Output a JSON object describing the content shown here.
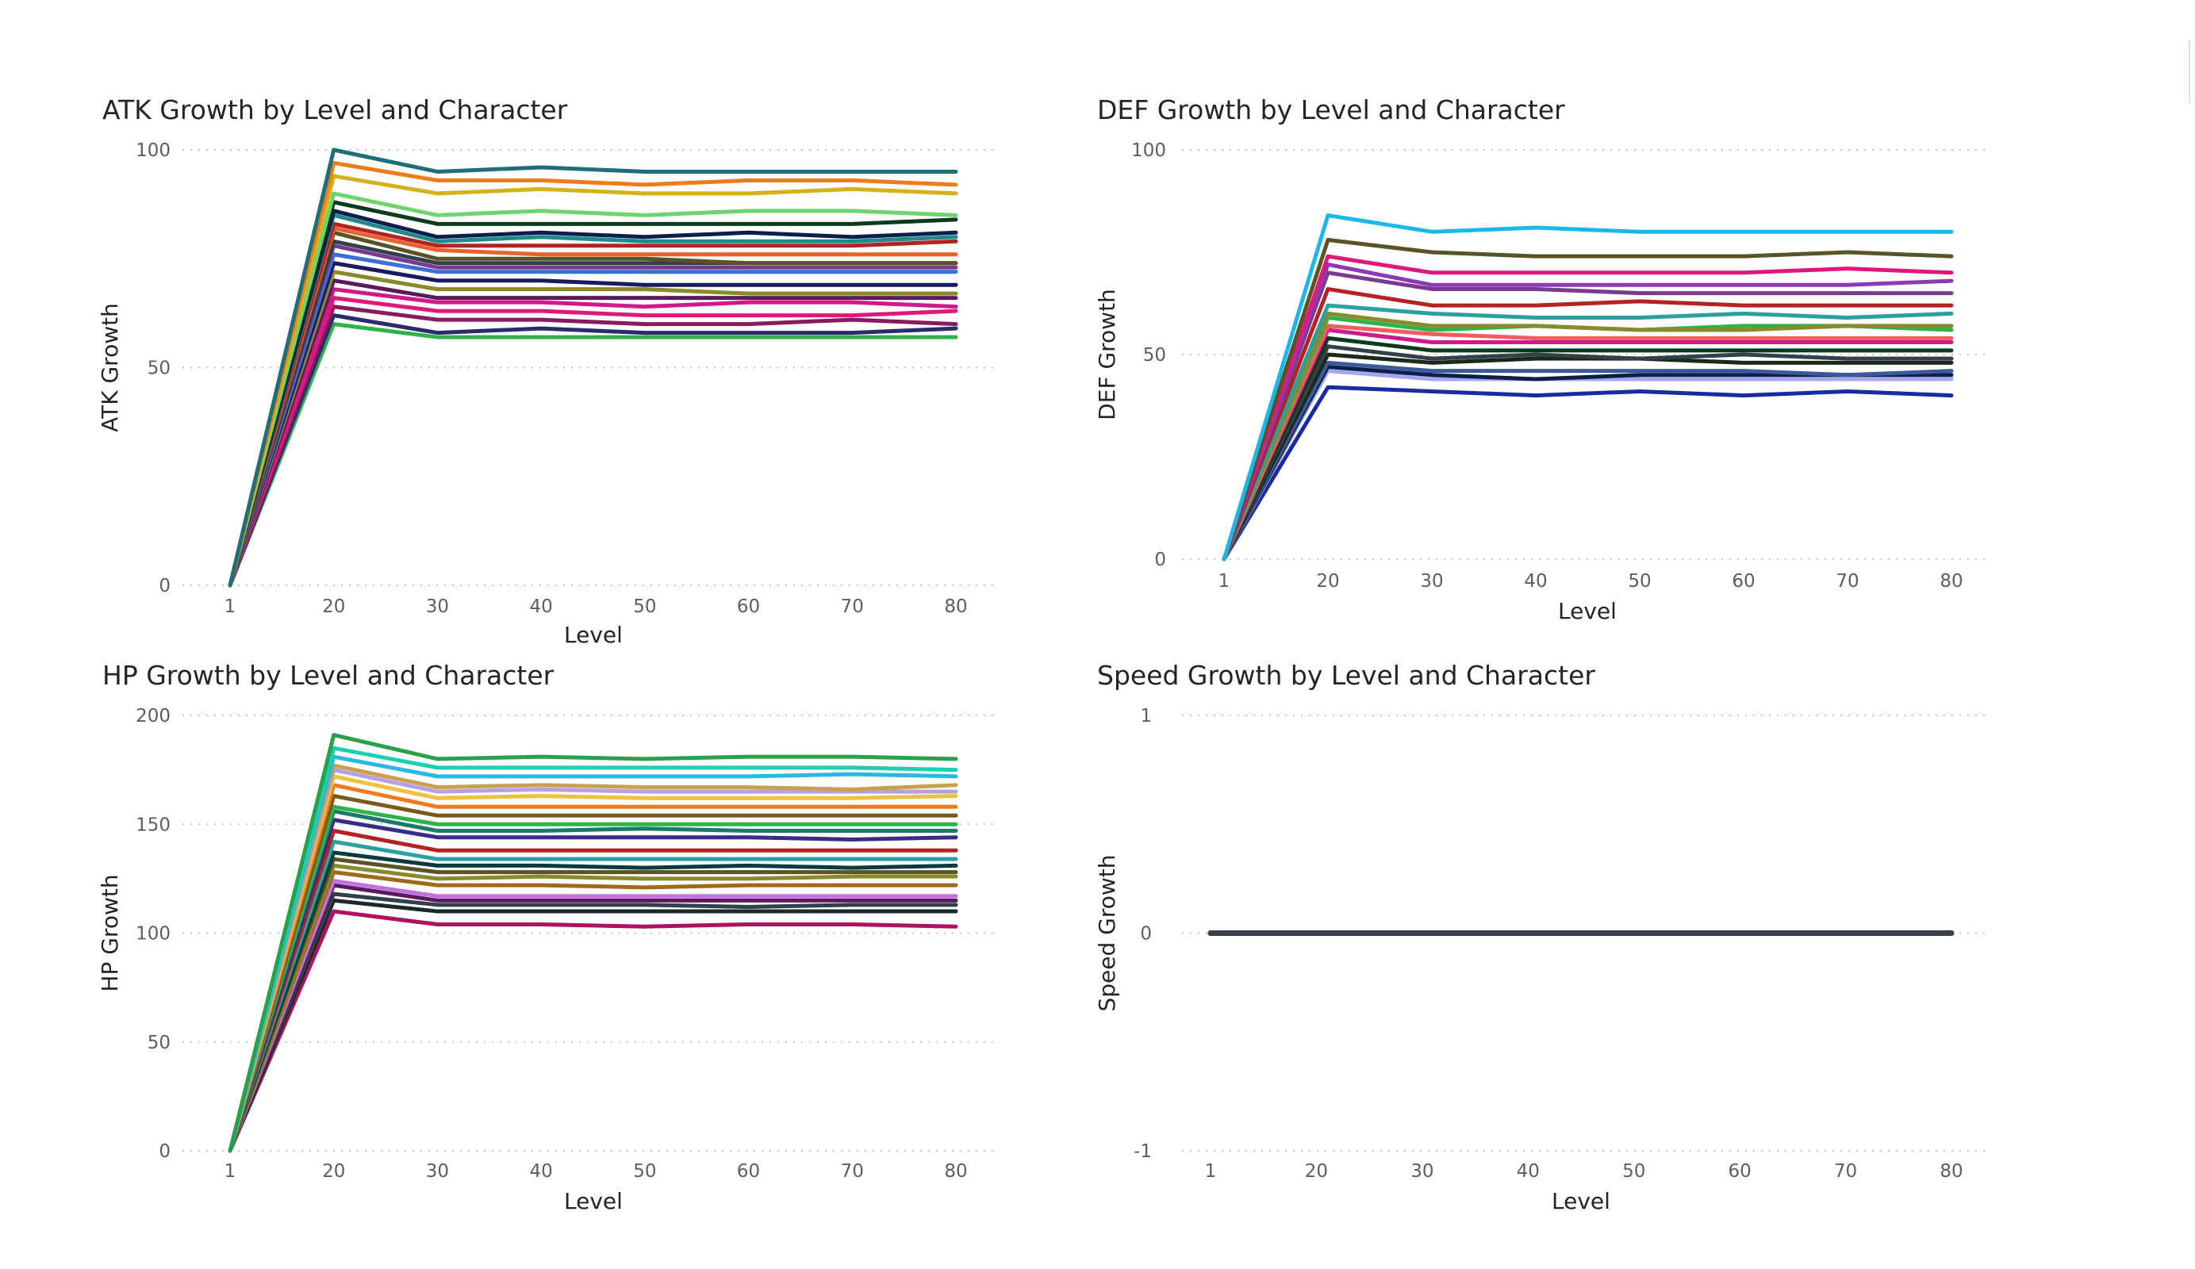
{
  "chart_data": [
    {
      "id": "atk",
      "type": "line",
      "title": "ATK Growth by Level and Character",
      "xlabel": "Level",
      "ylabel": "ATK Growth",
      "categories": [
        "1",
        "20",
        "30",
        "40",
        "50",
        "60",
        "70",
        "80"
      ],
      "ylim": [
        0,
        100
      ],
      "yticks": [
        0,
        50,
        100
      ],
      "grid": true,
      "series": [
        {
          "color": "#1f6f78",
          "values": [
            0,
            100,
            95,
            96,
            95,
            95,
            95,
            95
          ]
        },
        {
          "color": "#f07a1c",
          "values": [
            0,
            97,
            93,
            93,
            92,
            93,
            93,
            92
          ]
        },
        {
          "color": "#d4b21d",
          "values": [
            0,
            94,
            90,
            91,
            90,
            90,
            91,
            90
          ]
        },
        {
          "color": "#6fd46f",
          "values": [
            0,
            90,
            85,
            86,
            85,
            86,
            86,
            85
          ]
        },
        {
          "color": "#0c3b1c",
          "values": [
            0,
            88,
            83,
            83,
            83,
            83,
            83,
            84
          ]
        },
        {
          "color": "#0c1f4a",
          "values": [
            0,
            86,
            80,
            81,
            80,
            81,
            80,
            81
          ]
        },
        {
          "color": "#1e8a8a",
          "values": [
            0,
            85,
            79,
            80,
            79,
            79,
            79,
            80
          ]
        },
        {
          "color": "#b52222",
          "values": [
            0,
            83,
            78,
            78,
            78,
            78,
            78,
            79
          ]
        },
        {
          "color": "#e8622d",
          "values": [
            0,
            82,
            77,
            76,
            76,
            76,
            76,
            76
          ]
        },
        {
          "color": "#5a5326",
          "values": [
            0,
            81,
            75,
            75,
            75,
            74,
            74,
            74
          ]
        },
        {
          "color": "#333f4a",
          "values": [
            0,
            79,
            74,
            74,
            74,
            74,
            74,
            74
          ]
        },
        {
          "color": "#7a3a8f",
          "values": [
            0,
            78,
            73,
            73,
            73,
            73,
            73,
            73
          ]
        },
        {
          "color": "#3b6fd6",
          "values": [
            0,
            76,
            72,
            72,
            72,
            72,
            72,
            72
          ]
        },
        {
          "color": "#1a1a5e",
          "values": [
            0,
            74,
            70,
            70,
            69,
            69,
            69,
            69
          ]
        },
        {
          "color": "#8a8a2a",
          "values": [
            0,
            72,
            68,
            68,
            68,
            67,
            67,
            67
          ]
        },
        {
          "color": "#5c1a5c",
          "values": [
            0,
            70,
            66,
            66,
            66,
            66,
            66,
            66
          ]
        },
        {
          "color": "#d01a8a",
          "values": [
            0,
            68,
            65,
            65,
            64,
            65,
            65,
            64
          ]
        },
        {
          "color": "#e0187a",
          "values": [
            0,
            66,
            63,
            63,
            62,
            62,
            62,
            63
          ]
        },
        {
          "color": "#8a1a5e",
          "values": [
            0,
            64,
            61,
            61,
            60,
            60,
            61,
            60
          ]
        },
        {
          "color": "#2a2a6e",
          "values": [
            0,
            62,
            58,
            59,
            58,
            58,
            58,
            59
          ]
        },
        {
          "color": "#2db34a",
          "values": [
            0,
            60,
            57,
            57,
            57,
            57,
            57,
            57
          ]
        }
      ]
    },
    {
      "id": "def",
      "type": "line",
      "title": "DEF Growth by Level and Character",
      "xlabel": "Level",
      "ylabel": "DEF Growth",
      "categories": [
        "1",
        "20",
        "30",
        "40",
        "50",
        "60",
        "70",
        "80"
      ],
      "ylim": [
        0,
        100
      ],
      "yticks": [
        0,
        50,
        100
      ],
      "grid": true,
      "series": [
        {
          "color": "#1ab8ea",
          "values": [
            0,
            84,
            80,
            81,
            80,
            80,
            80,
            80
          ]
        },
        {
          "color": "#5a5326",
          "values": [
            0,
            78,
            75,
            74,
            74,
            74,
            75,
            74
          ]
        },
        {
          "color": "#e0187a",
          "values": [
            0,
            74,
            70,
            70,
            70,
            70,
            71,
            70
          ]
        },
        {
          "color": "#8a3ab5",
          "values": [
            0,
            72,
            67,
            67,
            67,
            67,
            67,
            68
          ]
        },
        {
          "color": "#7a3a8f",
          "values": [
            0,
            70,
            66,
            66,
            65,
            65,
            65,
            65
          ]
        },
        {
          "color": "#b52222",
          "values": [
            0,
            66,
            62,
            62,
            63,
            62,
            62,
            62
          ]
        },
        {
          "color": "#2aa0a0",
          "values": [
            0,
            62,
            60,
            59,
            59,
            60,
            59,
            60
          ]
        },
        {
          "color": "#8a8a2a",
          "values": [
            0,
            60,
            57,
            57,
            56,
            56,
            57,
            57
          ]
        },
        {
          "color": "#2db34a",
          "values": [
            0,
            59,
            56,
            57,
            56,
            57,
            57,
            56
          ]
        },
        {
          "color": "#f25c5c",
          "values": [
            0,
            57,
            55,
            54,
            54,
            54,
            54,
            54
          ]
        },
        {
          "color": "#d01a8a",
          "values": [
            0,
            56,
            53,
            53,
            53,
            53,
            53,
            53
          ]
        },
        {
          "color": "#0c3b1c",
          "values": [
            0,
            54,
            51,
            51,
            51,
            51,
            51,
            51
          ]
        },
        {
          "color": "#333f4a",
          "values": [
            0,
            52,
            49,
            50,
            49,
            50,
            49,
            49
          ]
        },
        {
          "color": "#1a2a1a",
          "values": [
            0,
            50,
            48,
            49,
            49,
            48,
            48,
            48
          ]
        },
        {
          "color": "#3b5a9a",
          "values": [
            0,
            48,
            46,
            46,
            46,
            46,
            45,
            46
          ]
        },
        {
          "color": "#0c1f4a",
          "values": [
            0,
            47,
            45,
            44,
            45,
            45,
            45,
            45
          ]
        },
        {
          "color": "#a5a5f0",
          "values": [
            0,
            46,
            44,
            44,
            44,
            44,
            44,
            44
          ]
        },
        {
          "color": "#1a2aa0",
          "values": [
            0,
            42,
            41,
            40,
            41,
            40,
            41,
            40
          ]
        }
      ]
    },
    {
      "id": "hp",
      "type": "line",
      "title": "HP Growth by Level and Character",
      "xlabel": "Level",
      "ylabel": "HP Growth",
      "categories": [
        "1",
        "20",
        "30",
        "40",
        "50",
        "60",
        "70",
        "80"
      ],
      "ylim": [
        0,
        200
      ],
      "yticks": [
        0,
        50,
        100,
        150,
        200
      ],
      "grid": true,
      "series": [
        {
          "color": "#2aa04a",
          "values": [
            0,
            191,
            180,
            181,
            180,
            181,
            181,
            180
          ]
        },
        {
          "color": "#1ad0b0",
          "values": [
            0,
            185,
            176,
            176,
            176,
            176,
            176,
            175
          ]
        },
        {
          "color": "#2ab8e0",
          "values": [
            0,
            181,
            172,
            172,
            172,
            172,
            173,
            172
          ]
        },
        {
          "color": "#c8a050",
          "values": [
            0,
            177,
            167,
            168,
            167,
            167,
            166,
            168
          ]
        },
        {
          "color": "#b8a0e0",
          "values": [
            0,
            175,
            165,
            166,
            165,
            165,
            165,
            165
          ]
        },
        {
          "color": "#f0c040",
          "values": [
            0,
            172,
            162,
            163,
            162,
            162,
            162,
            163
          ]
        },
        {
          "color": "#f07a1c",
          "values": [
            0,
            168,
            158,
            158,
            158,
            158,
            158,
            158
          ]
        },
        {
          "color": "#7a5a1a",
          "values": [
            0,
            163,
            154,
            154,
            154,
            154,
            154,
            154
          ]
        },
        {
          "color": "#2db34a",
          "values": [
            0,
            158,
            150,
            150,
            150,
            150,
            150,
            150
          ]
        },
        {
          "color": "#1a7a6a",
          "values": [
            0,
            156,
            147,
            147,
            148,
            147,
            147,
            147
          ]
        },
        {
          "color": "#3a2a8a",
          "values": [
            0,
            152,
            144,
            144,
            144,
            144,
            143,
            144
          ]
        },
        {
          "color": "#b52222",
          "values": [
            0,
            147,
            138,
            138,
            138,
            138,
            138,
            138
          ]
        },
        {
          "color": "#2aa0a0",
          "values": [
            0,
            142,
            134,
            134,
            134,
            134,
            134,
            134
          ]
        },
        {
          "color": "#0c3b3b",
          "values": [
            0,
            137,
            131,
            131,
            130,
            131,
            130,
            131
          ]
        },
        {
          "color": "#5a5326",
          "values": [
            0,
            134,
            128,
            128,
            128,
            128,
            128,
            128
          ]
        },
        {
          "color": "#8a8a2a",
          "values": [
            0,
            131,
            125,
            126,
            125,
            125,
            126,
            126
          ]
        },
        {
          "color": "#a06a1a",
          "values": [
            0,
            128,
            122,
            122,
            121,
            122,
            122,
            122
          ]
        },
        {
          "color": "#c070e0",
          "values": [
            0,
            124,
            117,
            117,
            117,
            117,
            117,
            117
          ]
        },
        {
          "color": "#5c1a5c",
          "values": [
            0,
            122,
            115,
            115,
            115,
            115,
            115,
            115
          ]
        },
        {
          "color": "#333f4a",
          "values": [
            0,
            118,
            113,
            113,
            113,
            112,
            113,
            113
          ]
        },
        {
          "color": "#1a2a2a",
          "values": [
            0,
            115,
            110,
            110,
            110,
            110,
            110,
            110
          ]
        },
        {
          "color": "#b01060",
          "values": [
            0,
            110,
            104,
            104,
            103,
            104,
            104,
            103
          ]
        }
      ]
    },
    {
      "id": "speed",
      "type": "line",
      "title": "Speed Growth by Level and Character",
      "xlabel": "Level",
      "ylabel": "Speed Growth",
      "categories": [
        "1",
        "20",
        "30",
        "40",
        "50",
        "60",
        "70",
        "80"
      ],
      "ylim": [
        -1,
        1
      ],
      "yticks": [
        -1,
        0,
        1
      ],
      "grid": true,
      "series": [
        {
          "color": "#333f4a",
          "values": [
            0,
            0,
            0,
            0,
            0,
            0,
            0,
            0
          ]
        }
      ]
    }
  ]
}
